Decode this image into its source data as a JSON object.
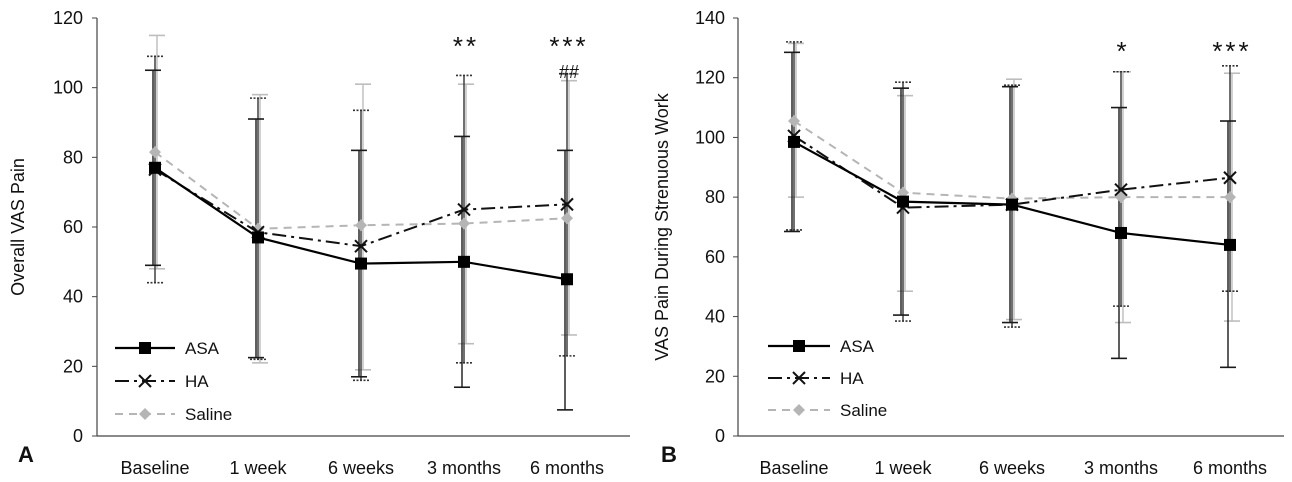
{
  "panels": [
    {
      "letter": "A",
      "ylabel": "Overall VAS Pain",
      "ylim": [
        0,
        120
      ],
      "yticks": [
        0,
        20,
        40,
        60,
        80,
        100,
        120
      ],
      "categories": [
        "Baseline",
        "1 week",
        "6 weeks",
        "3 months",
        "6 months"
      ],
      "annotations": [
        {
          "index": 3,
          "text": "**",
          "row": 0
        },
        {
          "index": 4,
          "text": "***",
          "row": 0
        },
        {
          "index": 4,
          "text": "##",
          "row": 1
        }
      ]
    },
    {
      "letter": "B",
      "ylabel": "VAS Pain During Strenuous Work",
      "ylim": [
        0,
        140
      ],
      "yticks": [
        0,
        20,
        40,
        60,
        80,
        100,
        120,
        140
      ],
      "categories": [
        "Baseline",
        "1 week",
        "6 weeks",
        "3 months",
        "6 months"
      ],
      "annotations": [
        {
          "index": 3,
          "text": "*",
          "row": 0
        },
        {
          "index": 4,
          "text": "***",
          "row": 0
        }
      ]
    }
  ],
  "legend": [
    {
      "name": "ASA"
    },
    {
      "name": "HA"
    },
    {
      "name": "Saline"
    }
  ],
  "chart_data": [
    {
      "type": "line",
      "ylabel": "Overall VAS Pain",
      "ylim": [
        0,
        120
      ],
      "categories": [
        "Baseline",
        "1 week",
        "6 weeks",
        "3 months",
        "6 months"
      ],
      "series": [
        {
          "name": "ASA",
          "values": [
            77,
            57,
            49.5,
            50,
            45
          ],
          "err_low": [
            49,
            22.5,
            17,
            14,
            7.5
          ],
          "err_high": [
            105,
            91,
            82,
            86,
            82
          ]
        },
        {
          "name": "HA",
          "values": [
            76.5,
            58.5,
            54.5,
            65,
            66.5
          ],
          "err_low": [
            44,
            22,
            16,
            21,
            23
          ],
          "err_high": [
            109,
            97,
            93.5,
            103.5,
            104
          ]
        },
        {
          "name": "Saline",
          "values": [
            81.5,
            59.5,
            60.5,
            61,
            62.5
          ],
          "err_low": [
            48,
            21,
            19,
            26.5,
            29
          ],
          "err_high": [
            115,
            98,
            101,
            101,
            102
          ]
        }
      ],
      "legend_position": "bottom-left"
    },
    {
      "type": "line",
      "ylabel": "VAS Pain During Strenuous Work",
      "ylim": [
        0,
        140
      ],
      "categories": [
        "Baseline",
        "1 week",
        "6 weeks",
        "3 months",
        "6 months"
      ],
      "series": [
        {
          "name": "ASA",
          "values": [
            98.5,
            78.5,
            77.5,
            68,
            64
          ],
          "err_low": [
            68.5,
            40.5,
            38,
            26,
            23
          ],
          "err_high": [
            128.5,
            116.5,
            117,
            110,
            105.5
          ]
        },
        {
          "name": "HA",
          "values": [
            100.5,
            76.5,
            77.5,
            82.5,
            86.5
          ],
          "err_low": [
            69,
            38.5,
            36.5,
            43.5,
            48.5
          ],
          "err_high": [
            132,
            118.5,
            117.5,
            122,
            124
          ]
        },
        {
          "name": "Saline",
          "values": [
            105.5,
            81.5,
            79.5,
            80,
            80
          ],
          "err_low": [
            80,
            48.5,
            39,
            38,
            38.5
          ],
          "err_high": [
            131.5,
            114,
            119.5,
            122,
            121.5
          ]
        }
      ],
      "legend_position": "bottom-left"
    }
  ],
  "colors": {
    "ASA": "#000000",
    "HA": "#111111",
    "Saline": "#b5b5b5",
    "axis": "#444444",
    "errorbar_ASA": "#1a1a1a",
    "errorbar_HA": "#333333",
    "errorbar_Saline": "#bdbdbd"
  }
}
